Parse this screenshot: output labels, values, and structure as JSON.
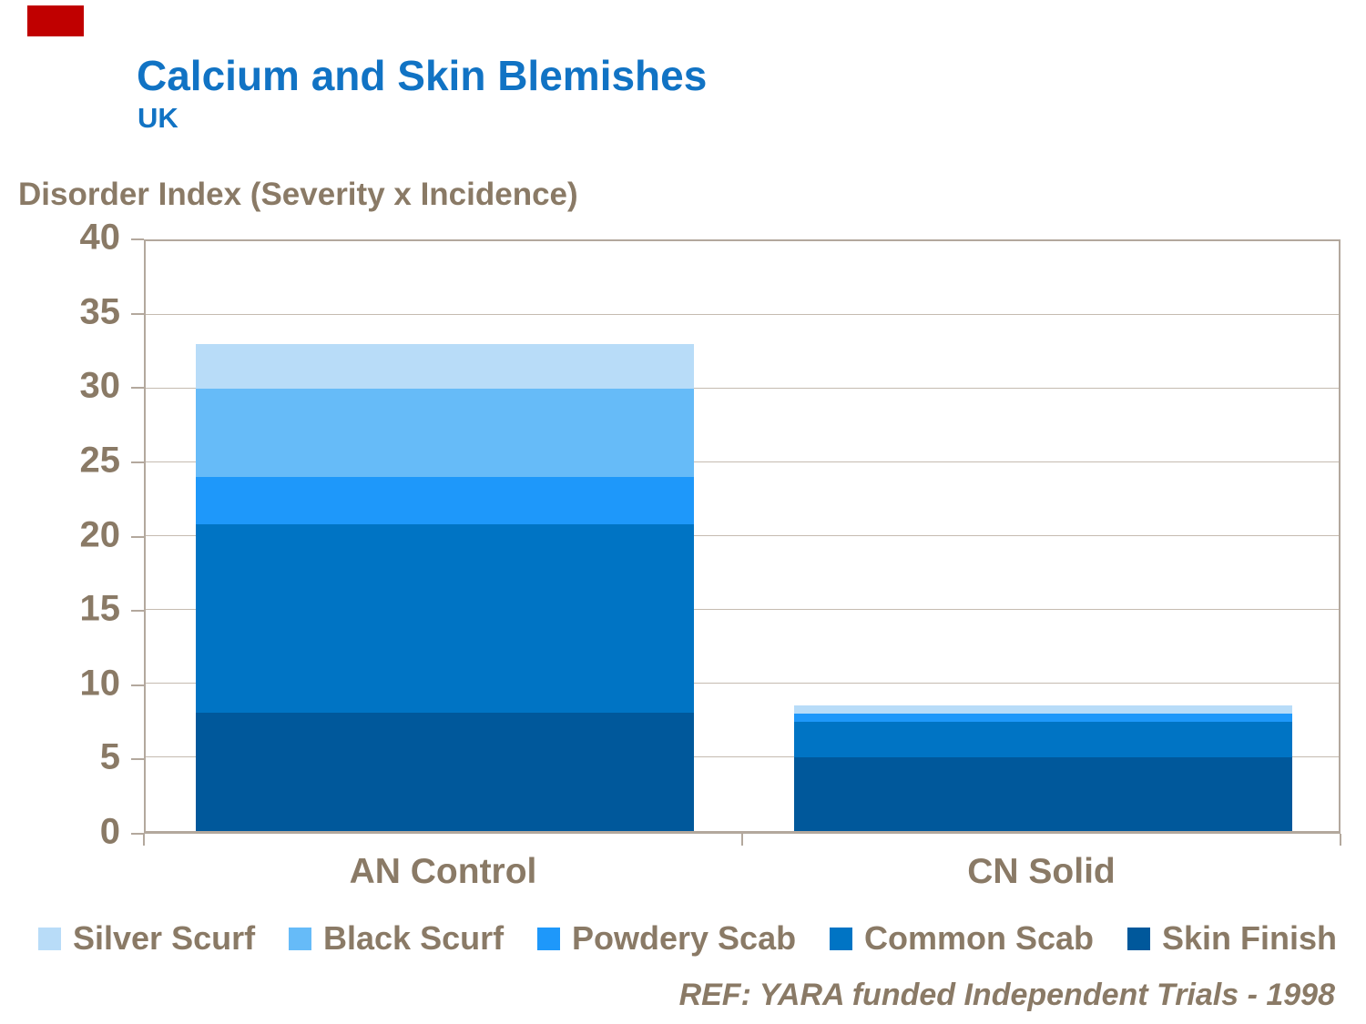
{
  "header": {
    "title": "Calcium and Skin Blemishes",
    "subtitle": "UK"
  },
  "axis_title": "Disorder Index (Severity x Incidence)",
  "footer": "REF: YARA funded Independent Trials - 1998",
  "colors": {
    "title_blue": "#1173C4",
    "text_taupe": "#8A7A66",
    "axis_frame": "#B3A89D",
    "gridline": "#C5BBB0",
    "red_accent": "#C00000"
  },
  "chart_data": {
    "type": "bar",
    "stacked": true,
    "title": "Calcium and Skin Blemishes",
    "subtitle": "UK",
    "ylabel": "Disorder Index (Severity x Incidence)",
    "xlabel": "",
    "categories": [
      "AN Control",
      "CN Solid"
    ],
    "series": [
      {
        "name": "Silver Scurf",
        "color": "#B8DCF8",
        "values": [
          3.0,
          0.55
        ]
      },
      {
        "name": "Black Scurf",
        "color": "#66BBF8",
        "values": [
          6.0,
          0.0
        ]
      },
      {
        "name": "Powdery Scab",
        "color": "#1E98FA",
        "values": [
          3.2,
          0.55
        ]
      },
      {
        "name": "Common Scab",
        "color": "#0074C4",
        "values": [
          12.8,
          2.4
        ]
      },
      {
        "name": "Skin Finish",
        "color": "#00589B",
        "values": [
          8.0,
          5.0
        ]
      }
    ],
    "totals": [
      33.0,
      8.5
    ],
    "ylim": [
      0,
      40
    ],
    "yticks": [
      0,
      5,
      10,
      15,
      20,
      25,
      30,
      35,
      40
    ],
    "grid": true,
    "legend_position": "bottom",
    "legend_order": [
      "Silver Scurf",
      "Black Scurf",
      "Powdery Scab",
      "Common Scab",
      "Skin Finish"
    ],
    "reference": "REF: YARA funded Independent Trials - 1998"
  }
}
